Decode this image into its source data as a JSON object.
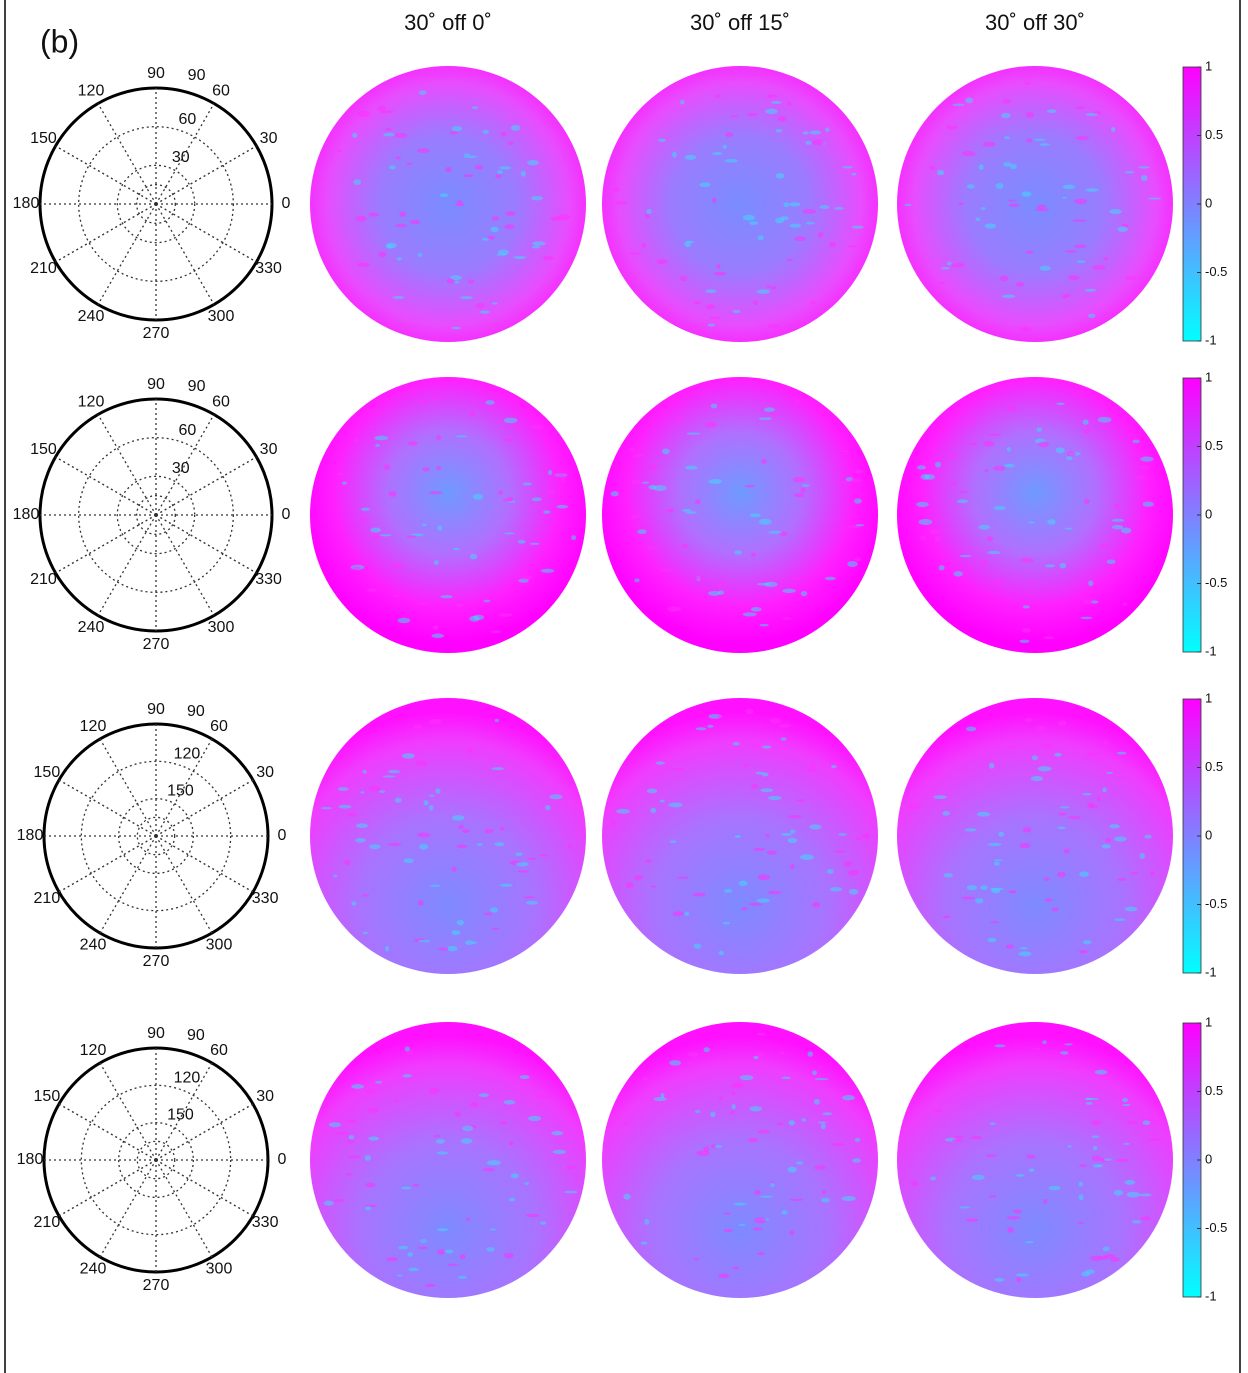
{
  "panel_label": "(b)",
  "column_titles": [
    "30˚ off 0˚",
    "30˚ off 15˚",
    "30˚ off 30˚"
  ],
  "colorbar_limits": [
    -1,
    1
  ],
  "rows": [
    {
      "polar": {
        "angle_labels": [
          0,
          30,
          60,
          90,
          120,
          150,
          180,
          210,
          240,
          270,
          300,
          330
        ],
        "radial_labels": [
          30,
          60,
          90
        ]
      },
      "colorbar_ticks": [
        1,
        0.5,
        0,
        -0.5,
        -1
      ]
    },
    {
      "polar": {
        "angle_labels": [
          0,
          30,
          60,
          90,
          120,
          150,
          180,
          210,
          240,
          270,
          300,
          330
        ],
        "radial_labels": [
          30,
          60,
          90
        ]
      },
      "colorbar_ticks": [
        1,
        0.5,
        0,
        -0.5,
        -1
      ]
    },
    {
      "polar": {
        "angle_labels": [
          0,
          30,
          60,
          90,
          120,
          150,
          180,
          210,
          240,
          270,
          300,
          330
        ],
        "radial_labels": [
          150,
          120,
          90
        ]
      },
      "colorbar_ticks": [
        1,
        0.5,
        0,
        -0.5,
        -1
      ]
    },
    {
      "polar": {
        "angle_labels": [
          0,
          30,
          60,
          90,
          120,
          150,
          180,
          210,
          240,
          270,
          300,
          330
        ],
        "radial_labels": [
          150,
          120,
          90
        ]
      },
      "colorbar_ticks": [
        1,
        0.5,
        0,
        -0.5,
        -1
      ]
    }
  ]
}
